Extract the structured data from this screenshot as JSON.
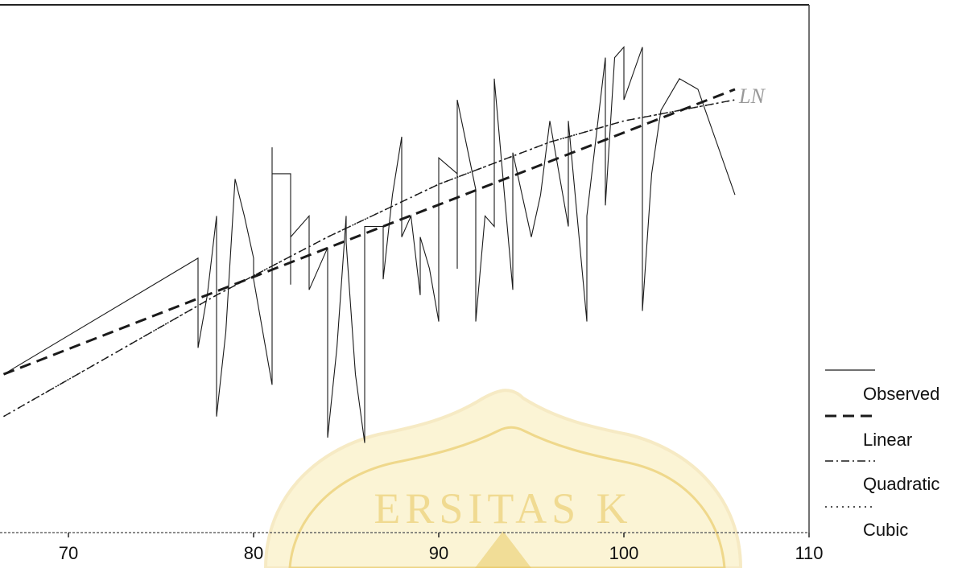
{
  "chart_data": {
    "type": "line",
    "title": "",
    "xlabel": "",
    "ylabel": "",
    "xlim": [
      66,
      110
    ],
    "ylim": [
      0,
      100
    ],
    "x_ticks": [
      70,
      80,
      90,
      100,
      110
    ],
    "grid": false,
    "legend_position": "right",
    "legend": [
      "Observed",
      "Linear",
      "Quadratic",
      "Cubic"
    ],
    "series": [
      {
        "name": "Observed",
        "style": "solid",
        "x": [
          66.5,
          77,
          77,
          77.5,
          78,
          78,
          78.5,
          79,
          79.5,
          80,
          80,
          81,
          81,
          81,
          82,
          82,
          82,
          83,
          83,
          84,
          84,
          84.5,
          85,
          85,
          85.5,
          86,
          86,
          87,
          87,
          87.5,
          88,
          88,
          88.5,
          89,
          89,
          89.5,
          90,
          90,
          91,
          91,
          91,
          92,
          92,
          92.5,
          93,
          93,
          94,
          94,
          95,
          95.5,
          96,
          97,
          97,
          98,
          98,
          99,
          99,
          99.5,
          100,
          100,
          101,
          101,
          101.5,
          102,
          103,
          104,
          106
        ],
        "y": [
          30,
          52,
          35,
          45,
          60,
          22,
          38,
          67,
          60,
          52,
          48,
          28,
          73,
          68,
          68,
          47,
          56,
          60,
          46,
          54,
          18,
          35,
          60,
          55,
          30,
          17,
          58,
          58,
          48,
          64,
          75,
          56,
          60,
          45,
          56,
          50,
          40,
          71,
          68,
          50,
          82,
          65,
          40,
          60,
          58,
          86,
          46,
          72,
          56,
          64,
          78,
          58,
          78,
          40,
          60,
          90,
          62,
          90,
          92,
          82,
          92,
          42,
          68,
          80,
          86,
          84,
          64
        ]
      },
      {
        "name": "Linear",
        "style": "dashed",
        "x": [
          66.5,
          106
        ],
        "y": [
          30,
          84
        ]
      },
      {
        "name": "Quadratic",
        "style": "dashdot",
        "x": [
          66.5,
          72,
          78,
          84,
          90,
          96,
          100,
          106
        ],
        "y": [
          22,
          33,
          45,
          56,
          66,
          74,
          78,
          82
        ]
      },
      {
        "name": "Cubic",
        "style": "dotted",
        "x": [
          66.5,
          72,
          78,
          84,
          90,
          96,
          100,
          106
        ],
        "y": [
          22,
          33,
          45,
          56,
          66,
          74,
          78,
          82
        ]
      }
    ]
  },
  "annotation_text": "LN",
  "watermark_text": "ERSITAS K",
  "colors": {
    "line": "#1a1a1a",
    "watermark": "#e8c55a"
  }
}
